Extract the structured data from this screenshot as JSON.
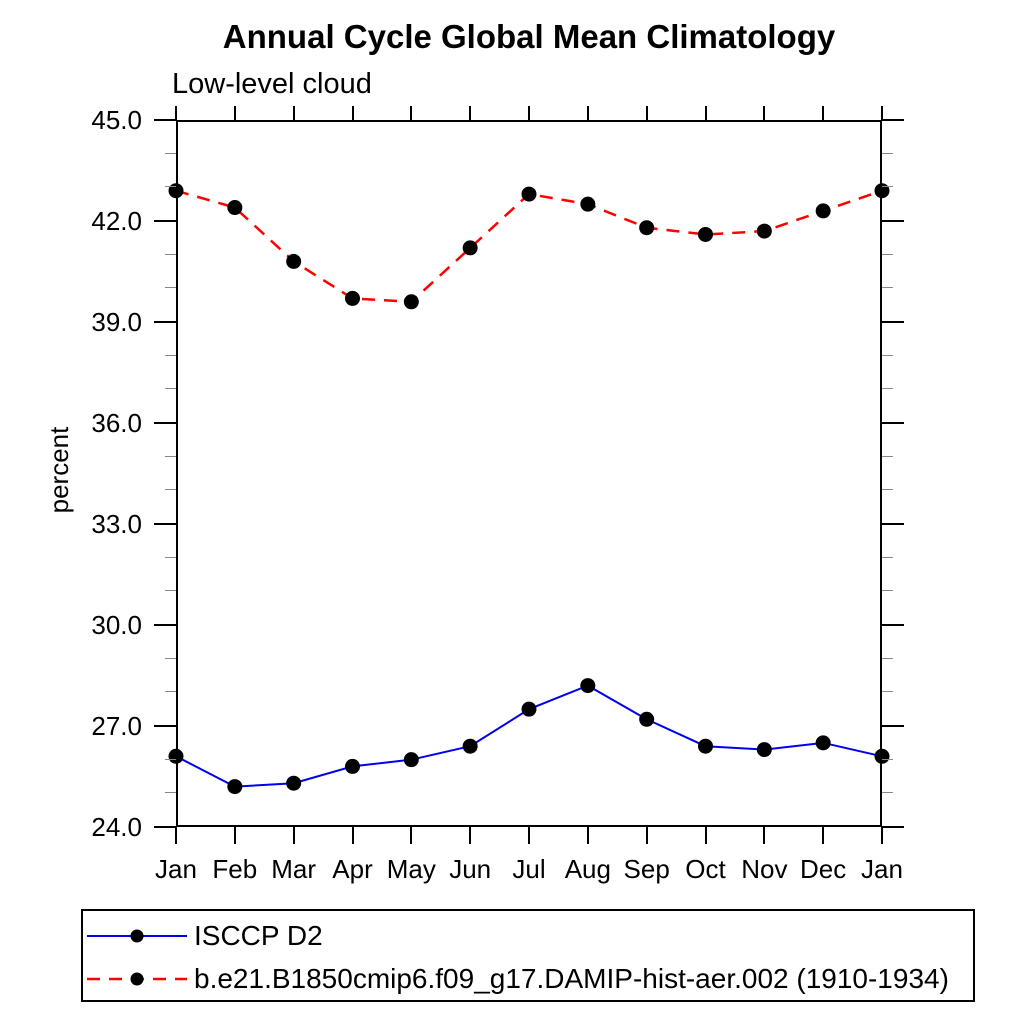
{
  "page": {
    "background_color": "#ffffff",
    "axis_color": "#000000",
    "minor_tick_color": "#888888"
  },
  "chart_data": {
    "type": "line",
    "title": "Annual Cycle Global Mean Climatology",
    "subtitle": "Low-level cloud",
    "xlabel": "",
    "ylabel": "percent",
    "categories": [
      "Jan",
      "Feb",
      "Mar",
      "Apr",
      "May",
      "Jun",
      "Jul",
      "Aug",
      "Sep",
      "Oct",
      "Nov",
      "Dec",
      "Jan"
    ],
    "ylim": [
      24.0,
      45.0
    ],
    "ytick_major_values": [
      45,
      42,
      39,
      36,
      33,
      30,
      27,
      24
    ],
    "ytick_major_labels": [
      "45.0",
      "42.0",
      "39.0",
      "36.0",
      "33.0",
      "30.0",
      "27.0",
      "24.0"
    ],
    "ytick_minor_step": 1.0,
    "grid": false,
    "legend_position": "bottom-left-box",
    "series": [
      {
        "name": "ISCCP D2",
        "color": "#0000ee",
        "line_style": "solid",
        "marker": "circle",
        "marker_color": "#000000",
        "values": [
          26.1,
          25.2,
          25.3,
          25.8,
          26.0,
          26.4,
          27.5,
          28.2,
          27.2,
          26.4,
          26.3,
          26.5,
          26.1
        ]
      },
      {
        "name": "b.e21.B1850cmip6.f09_g17.DAMIP-hist-aer.002 (1910-1934)",
        "color": "#ff0000",
        "line_style": "dashed",
        "marker": "circle",
        "marker_color": "#000000",
        "values": [
          42.9,
          42.4,
          40.8,
          39.7,
          39.6,
          41.2,
          42.8,
          42.5,
          41.8,
          41.6,
          41.7,
          42.3,
          42.9
        ]
      }
    ]
  }
}
